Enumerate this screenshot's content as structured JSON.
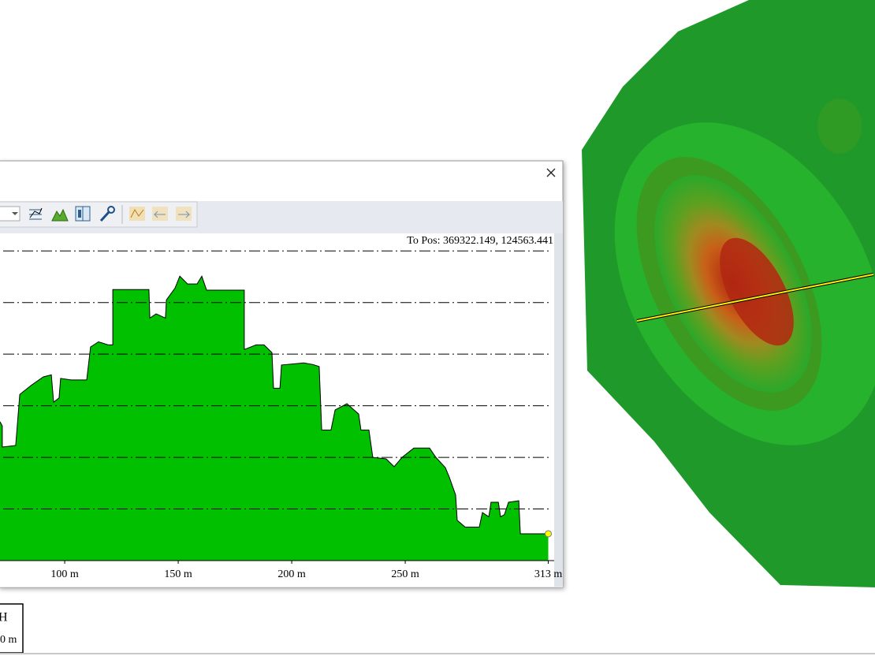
{
  "profile_window": {
    "position_label": "To Pos: 369322.149, 124563.441"
  },
  "chart_data": {
    "type": "area",
    "color": "#00c000",
    "x": [
      71.5,
      72.5,
      72.5,
      78.4,
      80.2,
      85.4,
      90.6,
      94.1,
      95.1,
      97.5,
      98.2,
      102.8,
      109.7,
      111.4,
      114.9,
      119.1,
      121.2,
      121.2,
      137.1,
      137.5,
      140.3,
      144.4,
      144.8,
      148.6,
      150.7,
      154.1,
      158.3,
      160.4,
      162.5,
      179.1,
      179.1,
      184.3,
      187.8,
      191.3,
      192.0,
      194.8,
      195.5,
      205.2,
      209.3,
      212.1,
      213.2,
      217.3,
      219.1,
      224.3,
      229.5,
      230.5,
      234.0,
      235.7,
      241.6,
      245.1,
      248.6,
      253.8,
      260.7,
      263.5,
      267.7,
      269.4,
      272.2,
      272.9,
      276.4,
      282.6,
      284.0,
      286.8,
      287.8,
      291.0,
      292.0,
      293.7,
      295.5,
      300.0,
      300.7,
      313
    ],
    "values": [
      2.69,
      2.61,
      2.2,
      2.23,
      3.22,
      3.4,
      3.56,
      3.6,
      3.07,
      3.15,
      3.53,
      3.5,
      3.5,
      4.14,
      4.24,
      4.18,
      4.18,
      5.25,
      5.25,
      4.7,
      4.78,
      4.7,
      5.05,
      5.28,
      5.51,
      5.36,
      5.36,
      5.51,
      5.24,
      5.24,
      4.09,
      4.18,
      4.18,
      4.03,
      3.34,
      3.34,
      3.79,
      3.83,
      3.8,
      3.76,
      2.53,
      2.53,
      2.92,
      3.04,
      2.84,
      2.53,
      2.53,
      2.0,
      1.97,
      1.82,
      2.0,
      2.18,
      2.18,
      2.0,
      1.8,
      1.62,
      1.27,
      0.78,
      0.65,
      0.65,
      0.93,
      0.85,
      1.13,
      1.13,
      0.85,
      0.89,
      1.13,
      1.16,
      0.52,
      0.52
    ],
    "xlim": [
      71.5,
      315.6
    ],
    "xticks": [
      {
        "value": 100,
        "label": "100 m"
      },
      {
        "value": 150,
        "label": "150 m"
      },
      {
        "value": 200,
        "label": "200 m"
      },
      {
        "value": 250,
        "label": "250 m"
      },
      {
        "value": 313,
        "label": "313 m"
      }
    ],
    "ylim": [
      0,
      6.34
    ],
    "yticks": [
      1,
      2,
      3,
      4,
      5,
      6
    ],
    "grid": true
  },
  "scale_bar": {
    "label_top": "H",
    "label_bottom": "0 m"
  }
}
